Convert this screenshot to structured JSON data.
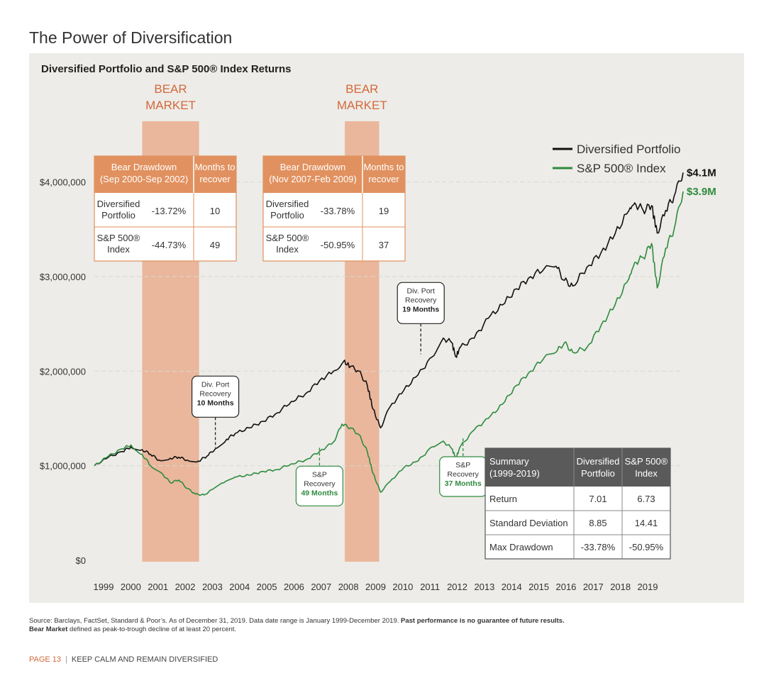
{
  "page_title": "The Power of Diversification",
  "chart_data": {
    "type": "line",
    "title": "Diversified Portfolio and S&P 500® Index Returns",
    "xlabel": "",
    "ylabel": "",
    "ylim": [
      0,
      4500000
    ],
    "y_ticks": [
      {
        "value": 0,
        "label": "$0"
      },
      {
        "value": 1000000,
        "label": "$1,000,000"
      },
      {
        "value": 2000000,
        "label": "$2,000,000"
      },
      {
        "value": 3000000,
        "label": "$3,000,000"
      },
      {
        "value": 4000000,
        "label": "$4,000,000"
      }
    ],
    "x_tick_labels": [
      "1999",
      "2000",
      "2001",
      "2002",
      "2003",
      "2004",
      "2005",
      "2006",
      "2007",
      "2008",
      "2009",
      "2010",
      "2011",
      "2012",
      "2013",
      "2014",
      "2015",
      "2016",
      "2017",
      "2018",
      "2019"
    ],
    "legend_position": "top-right",
    "series": [
      {
        "name": "Diversified Portfolio",
        "color": "#111111",
        "end_label": "$4.1M",
        "points": [
          [
            1999.0,
            1000000
          ],
          [
            1999.5,
            1090000
          ],
          [
            2000.0,
            1150000
          ],
          [
            2000.3,
            1200000
          ],
          [
            2000.7,
            1170000
          ],
          [
            2001.0,
            1120000
          ],
          [
            2001.3,
            1060000
          ],
          [
            2001.7,
            1080000
          ],
          [
            2002.0,
            1090000
          ],
          [
            2002.3,
            1060000
          ],
          [
            2002.7,
            1050000
          ],
          [
            2003.0,
            1100000
          ],
          [
            2003.3,
            1180000
          ],
          [
            2003.7,
            1280000
          ],
          [
            2004.0,
            1340000
          ],
          [
            2004.5,
            1400000
          ],
          [
            2005.0,
            1470000
          ],
          [
            2005.5,
            1560000
          ],
          [
            2006.0,
            1680000
          ],
          [
            2006.5,
            1760000
          ],
          [
            2007.0,
            1900000
          ],
          [
            2007.5,
            2000000
          ],
          [
            2007.85,
            2100000
          ],
          [
            2008.1,
            2050000
          ],
          [
            2008.4,
            2000000
          ],
          [
            2008.7,
            1850000
          ],
          [
            2008.9,
            1600000
          ],
          [
            2009.17,
            1400000
          ],
          [
            2009.5,
            1620000
          ],
          [
            2010.0,
            1800000
          ],
          [
            2010.5,
            1960000
          ],
          [
            2011.0,
            2150000
          ],
          [
            2011.4,
            2350000
          ],
          [
            2011.7,
            2300000
          ],
          [
            2011.85,
            2150000
          ],
          [
            2012.0,
            2250000
          ],
          [
            2012.5,
            2350000
          ],
          [
            2013.0,
            2560000
          ],
          [
            2013.5,
            2700000
          ],
          [
            2014.0,
            2870000
          ],
          [
            2014.5,
            3000000
          ],
          [
            2015.0,
            3090000
          ],
          [
            2015.4,
            3110000
          ],
          [
            2015.7,
            2960000
          ],
          [
            2016.0,
            2900000
          ],
          [
            2016.5,
            3100000
          ],
          [
            2017.0,
            3250000
          ],
          [
            2017.5,
            3450000
          ],
          [
            2018.0,
            3700000
          ],
          [
            2018.2,
            3780000
          ],
          [
            2018.5,
            3700000
          ],
          [
            2018.8,
            3750000
          ],
          [
            2019.0,
            3460000
          ],
          [
            2019.3,
            3700000
          ],
          [
            2019.6,
            3850000
          ],
          [
            2019.92,
            4100000
          ]
        ]
      },
      {
        "name": "S&P 500® Index",
        "color": "#2e8b3e",
        "end_label": "$3.9M",
        "points": [
          [
            1999.0,
            1000000
          ],
          [
            1999.5,
            1100000
          ],
          [
            2000.0,
            1180000
          ],
          [
            2000.3,
            1220000
          ],
          [
            2000.7,
            1120000
          ],
          [
            2001.0,
            1000000
          ],
          [
            2001.4,
            920000
          ],
          [
            2001.7,
            820000
          ],
          [
            2002.0,
            850000
          ],
          [
            2002.3,
            760000
          ],
          [
            2002.6,
            700000
          ],
          [
            2002.9,
            690000
          ],
          [
            2003.2,
            750000
          ],
          [
            2003.6,
            820000
          ],
          [
            2004.0,
            880000
          ],
          [
            2004.5,
            900000
          ],
          [
            2005.0,
            940000
          ],
          [
            2005.5,
            960000
          ],
          [
            2006.0,
            1020000
          ],
          [
            2006.5,
            1060000
          ],
          [
            2007.0,
            1150000
          ],
          [
            2007.5,
            1250000
          ],
          [
            2007.8,
            1440000
          ],
          [
            2008.1,
            1400000
          ],
          [
            2008.4,
            1330000
          ],
          [
            2008.7,
            1150000
          ],
          [
            2008.9,
            920000
          ],
          [
            2009.17,
            720000
          ],
          [
            2009.5,
            830000
          ],
          [
            2010.0,
            980000
          ],
          [
            2010.5,
            1050000
          ],
          [
            2011.0,
            1200000
          ],
          [
            2011.4,
            1260000
          ],
          [
            2011.7,
            1180000
          ],
          [
            2011.85,
            1080000
          ],
          [
            2012.0,
            1200000
          ],
          [
            2012.5,
            1380000
          ],
          [
            2013.0,
            1500000
          ],
          [
            2013.5,
            1650000
          ],
          [
            2014.0,
            1850000
          ],
          [
            2014.5,
            2000000
          ],
          [
            2015.0,
            2150000
          ],
          [
            2015.4,
            2200000
          ],
          [
            2015.7,
            2300000
          ],
          [
            2016.0,
            2200000
          ],
          [
            2016.5,
            2250000
          ],
          [
            2017.0,
            2480000
          ],
          [
            2017.5,
            2700000
          ],
          [
            2018.0,
            2980000
          ],
          [
            2018.2,
            3150000
          ],
          [
            2018.5,
            3200000
          ],
          [
            2018.8,
            3350000
          ],
          [
            2019.0,
            2880000
          ],
          [
            2019.3,
            3300000
          ],
          [
            2019.6,
            3500000
          ],
          [
            2019.92,
            3900000
          ]
        ]
      }
    ],
    "bear_markets": [
      {
        "start": 2000.7,
        "end": 2002.72,
        "label_line1": "BEAR",
        "label_line2": "MARKET"
      },
      {
        "start": 2007.9,
        "end": 2009.12,
        "label_line1": "BEAR",
        "label_line2": "MARKET"
      }
    ],
    "annotations": [
      {
        "x": 2003.3,
        "y": 1160000,
        "style": "dark",
        "lines": [
          "Div. Port",
          "Recovery"
        ],
        "bold": "10 Months"
      },
      {
        "x": 2010.6,
        "y": 2150000,
        "style": "dark",
        "lines": [
          "Div. Port",
          "Recovery"
        ],
        "bold": "19 Months"
      },
      {
        "x": 2007.0,
        "y": 1220000,
        "style": "green",
        "lines": [
          "S&P",
          "Recovery"
        ],
        "bold": "49 Months"
      },
      {
        "x": 2012.1,
        "y": 1320000,
        "style": "green",
        "lines": [
          "S&P",
          "Recovery"
        ],
        "bold": "37 Months"
      }
    ],
    "drawdown_tables": [
      {
        "header": [
          "Bear Drawdown",
          "(Sep 2000-Sep 2002)"
        ],
        "header2": [
          "Months to",
          "recover"
        ],
        "rows": [
          {
            "name": [
              "Diversified",
              "Portfolio"
            ],
            "drawdown": "-13.72%",
            "months": "10"
          },
          {
            "name": [
              "S&P 500®",
              "Index"
            ],
            "drawdown": "-44.73%",
            "months": "49"
          }
        ]
      },
      {
        "header": [
          "Bear Drawdown",
          "(Nov 2007-Feb 2009)"
        ],
        "header2": [
          "Months to",
          "recover"
        ],
        "rows": [
          {
            "name": [
              "Diversified",
              "Portfolio"
            ],
            "drawdown": "-33.78%",
            "months": "19"
          },
          {
            "name": [
              "S&P 500®",
              "Index"
            ],
            "drawdown": "-50.95%",
            "months": "37"
          }
        ]
      }
    ],
    "summary_table": {
      "header": [
        [
          "Summary",
          "(1999-2019)"
        ],
        [
          "Diversified",
          "Portfolio"
        ],
        [
          "S&P 500®",
          "Index"
        ]
      ],
      "rows": [
        [
          "Return",
          "7.01",
          "6.73"
        ],
        [
          "Standard Deviation",
          "8.85",
          "14.41"
        ],
        [
          "Max Drawdown",
          "-33.78%",
          "-50.95%"
        ]
      ]
    }
  },
  "source": {
    "text": "Source: Barclays, FactSet, Standard & Poor’s. As of December 31, 2019. Data date range is January 1999-December 2019. ",
    "bold1": "Past performance is no guarantee of future results.",
    "bold2": "Bear Market",
    "text2": " defined as peak-to-trough decline of at least 20 percent."
  },
  "footer": {
    "page": "PAGE 13",
    "title": "KEEP CALM AND REMAIN DIVERSIFIED"
  },
  "colors": {
    "accent": "#d2693c",
    "bear_band": "#eab79c",
    "table_header": "#e1915f",
    "summary_header": "#5a5a5a",
    "panel": "#edece8"
  }
}
